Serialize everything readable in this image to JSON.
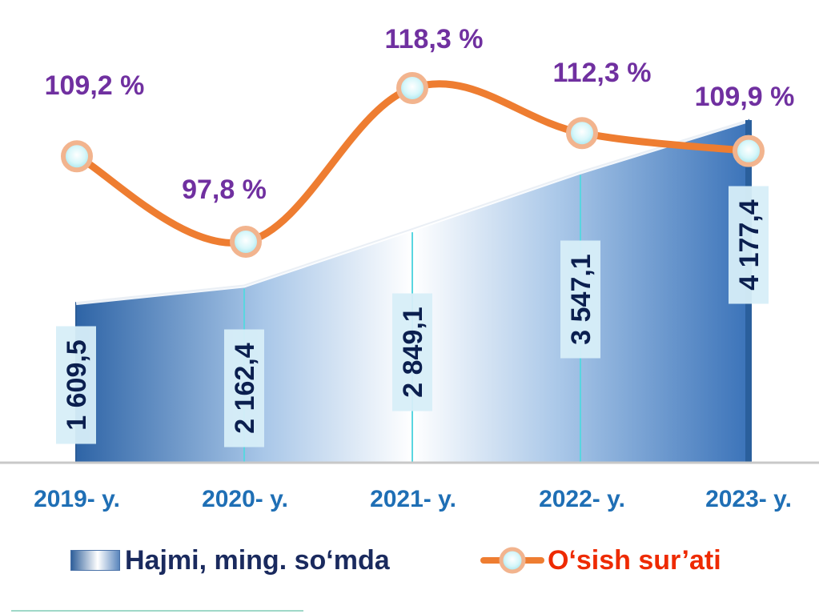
{
  "chart_data": {
    "type": "area+line",
    "categories": [
      "2019- y.",
      "2020- y.",
      "2021- y.",
      "2022- y.",
      "2023- y."
    ],
    "series": [
      {
        "name": "Hajmi, ming. so‘mda",
        "type": "area",
        "values": [
          1609.5,
          2162.4,
          2849.1,
          3547.1,
          4177.4
        ],
        "labels": [
          "1 609,5",
          "2 162,4",
          "2 849,1",
          "3 547,1",
          "4 177,4"
        ],
        "color": "#3b73b9"
      },
      {
        "name": "O‘sish sur’ati",
        "type": "line",
        "values": [
          109.2,
          97.8,
          118.3,
          112.3,
          109.9
        ],
        "labels": [
          "109,2 %",
          "97,8 %",
          "118,3 %",
          "112,3 %",
          "109,9 %"
        ],
        "color": "#ee7d31"
      }
    ],
    "volume_axis_range": [
      0,
      4500
    ],
    "growth_axis_range": [
      90,
      122
    ],
    "legend_position": "bottom"
  },
  "legend": {
    "volume_label": "Hajmi, ming. so‘mda",
    "growth_label": "O‘sish sur’ati"
  },
  "colors": {
    "volume": "#3b73b9",
    "growth_line": "#ee7d31",
    "growth_label": "#7030a0",
    "category": "#1f6fb5",
    "value_label": "#0b1f4f"
  }
}
